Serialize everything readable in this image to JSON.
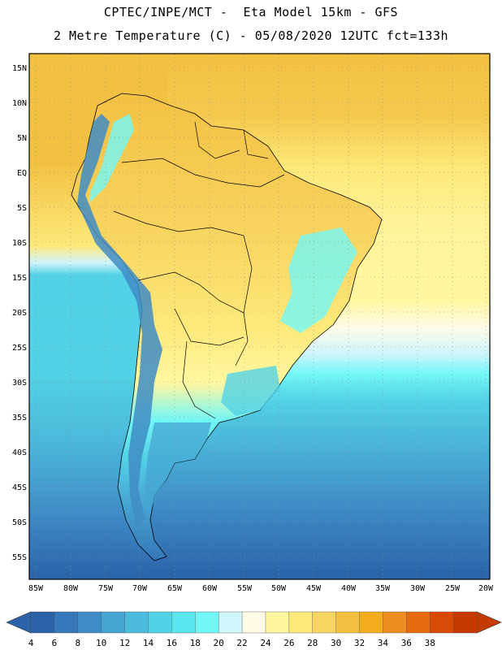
{
  "header": {
    "line1": "CPTEC/INPE/MCT -  Eta Model 15km - GFS",
    "line2": "2 Metre Temperature (C) - 05/08/2020 12UTC fct=133h"
  },
  "axes": {
    "lat_labels": [
      "15N",
      "10N",
      "5N",
      "EQ",
      "5S",
      "10S",
      "15S",
      "20S",
      "25S",
      "30S",
      "35S",
      "40S",
      "45S",
      "50S",
      "55S"
    ],
    "lon_labels": [
      "85W",
      "80W",
      "75W",
      "70W",
      "65W",
      "60W",
      "55W",
      "50W",
      "45W",
      "40W",
      "35W",
      "30W",
      "25W",
      "20W"
    ]
  },
  "colorbar": {
    "labels": [
      "4",
      "6",
      "8",
      "10",
      "12",
      "14",
      "16",
      "18",
      "20",
      "22",
      "24",
      "26",
      "28",
      "30",
      "32",
      "34",
      "36",
      "38"
    ],
    "colors": [
      "#2a63a8",
      "#3577b8",
      "#3f8cc6",
      "#46a4d2",
      "#4dbcdc",
      "#52d2e6",
      "#5ae6ee",
      "#72f7f7",
      "#d0f5fb",
      "#fffbe6",
      "#fff7a0",
      "#fde97a",
      "#f8d460",
      "#f3c142",
      "#f2ac1c",
      "#ee8e20",
      "#e66a10",
      "#d84a05",
      "#c43a00"
    ],
    "left_arrow_color": "#2a63a8",
    "right_arrow_color": "#c43a00"
  }
}
